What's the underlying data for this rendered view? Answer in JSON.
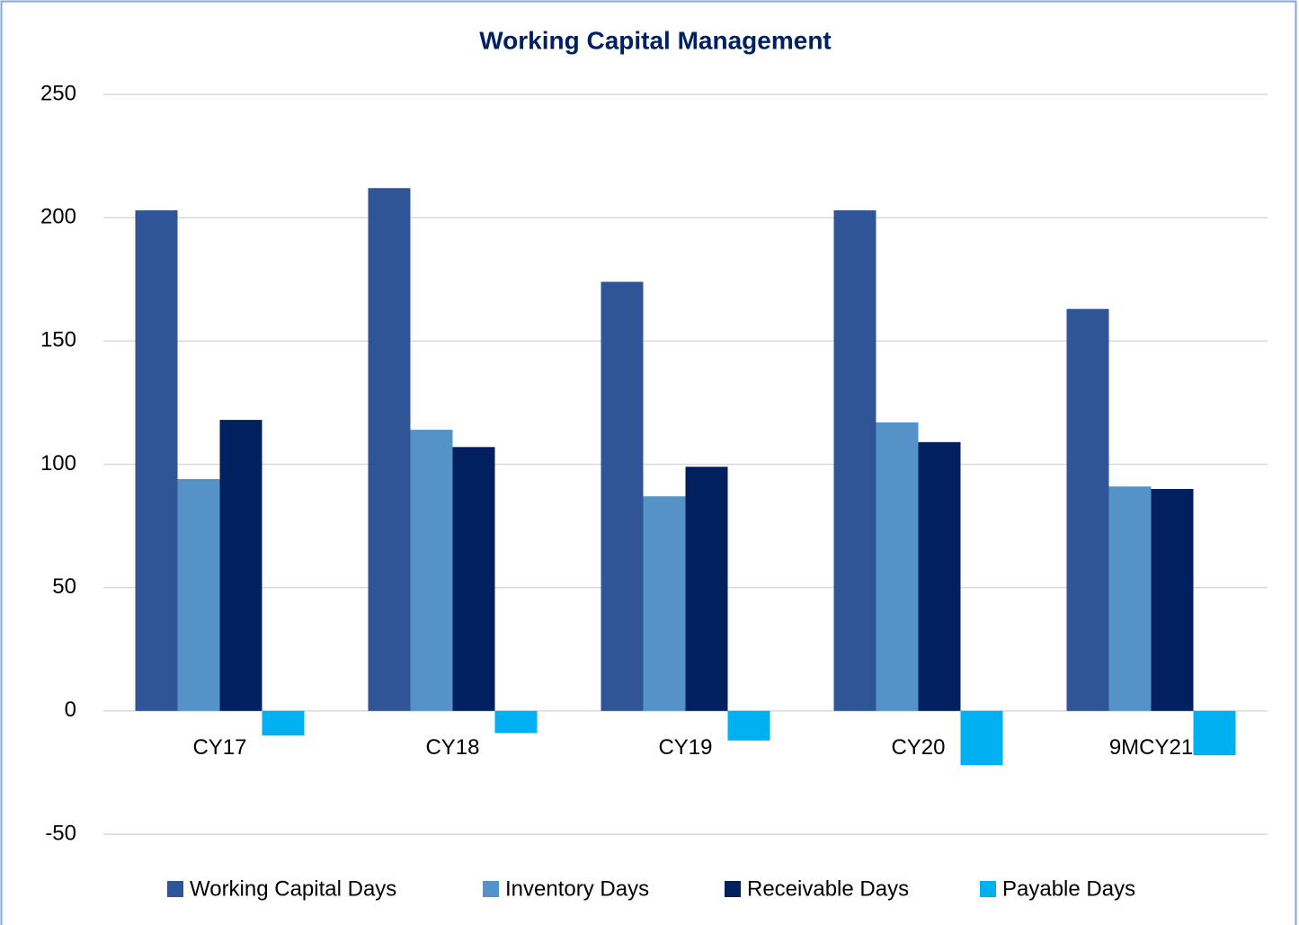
{
  "chart_data": {
    "type": "bar",
    "title": "Working Capital Management",
    "categories": [
      "CY17",
      "CY18",
      "CY19",
      "CY20",
      "9MCY21"
    ],
    "series": [
      {
        "name": "Working Capital Days",
        "color": "#2f5597",
        "values": [
          203,
          212,
          174,
          203,
          163
        ]
      },
      {
        "name": "Inventory Days",
        "color": "#5592c8",
        "values": [
          94,
          114,
          87,
          117,
          91
        ]
      },
      {
        "name": "Receivable Days",
        "color": "#002060",
        "values": [
          118,
          107,
          99,
          109,
          90
        ]
      },
      {
        "name": "Payable Days",
        "color": "#00b0f0",
        "values": [
          -10,
          -9,
          -12,
          -22,
          -18
        ]
      }
    ],
    "ylim": [
      -50,
      250
    ],
    "yticks": [
      -50,
      0,
      50,
      100,
      150,
      200,
      250
    ],
    "grid": true,
    "legend": "bottom"
  }
}
